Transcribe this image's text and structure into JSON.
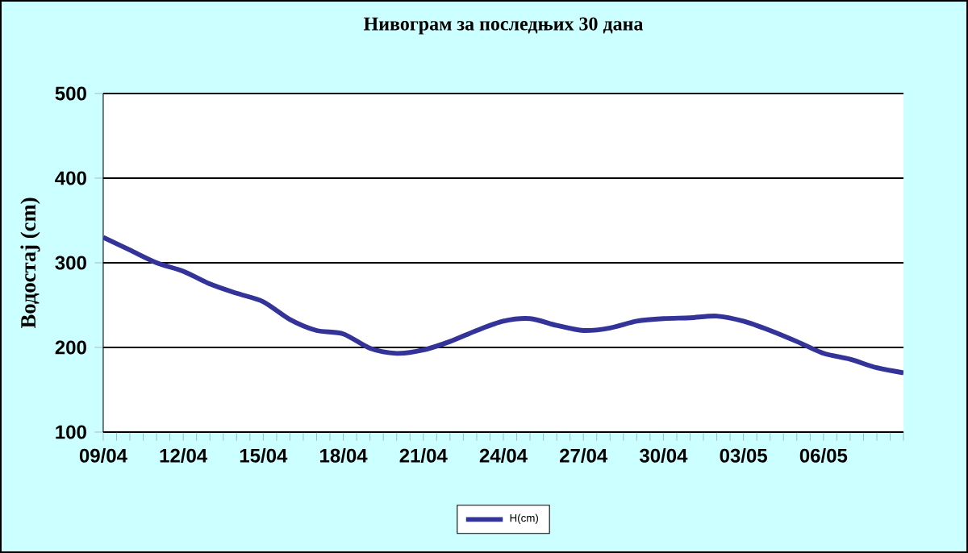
{
  "chart_data": {
    "type": "line",
    "title": "Нивограм за последњих 30 дана",
    "ylabel": "Водостај (cm)",
    "categories": [
      "09/04",
      null,
      null,
      "12/04",
      null,
      null,
      "15/04",
      null,
      null,
      "18/04",
      null,
      null,
      "21/04",
      null,
      null,
      "24/04",
      null,
      null,
      "27/04",
      null,
      null,
      "30/04",
      null,
      null,
      "03/05",
      null,
      null,
      "06/05",
      null,
      null,
      null
    ],
    "series": [
      {
        "name": "H(cm)",
        "color": "#333399",
        "values": [
          330,
          315,
          300,
          290,
          275,
          264,
          254,
          233,
          220,
          216,
          199,
          193,
          197,
          207,
          220,
          231,
          234,
          226,
          220,
          223,
          231,
          234,
          235,
          237,
          231,
          220,
          207,
          193,
          186,
          176,
          170
        ]
      }
    ],
    "ylim": [
      100,
      500
    ],
    "yticks": [
      100,
      200,
      300,
      400,
      500
    ],
    "grid": "y",
    "legend": "bottom"
  }
}
